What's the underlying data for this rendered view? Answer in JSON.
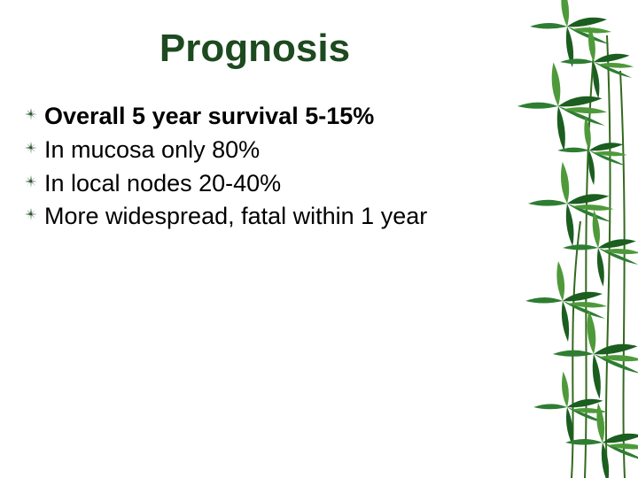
{
  "slide": {
    "title": "Prognosis",
    "title_color": "#1d4a1f",
    "title_fontsize": 44,
    "body_fontsize": 27,
    "bullet_color": "#1d4a1f",
    "bullets": [
      {
        "text": "Overall 5 year survival 5-15%",
        "bold": true
      },
      {
        "text": "In mucosa only 80%",
        "bold": false
      },
      {
        "text": "In local nodes 20-40%",
        "bold": false
      },
      {
        "text": "More widespread, fatal within 1 year",
        "bold": false
      }
    ]
  },
  "decor": {
    "bamboo_colors": {
      "leaf_dark": "#1b5e20",
      "leaf_mid": "#2e7d32",
      "leaf_light": "#4e9a3a",
      "stem": "#33691e"
    }
  }
}
